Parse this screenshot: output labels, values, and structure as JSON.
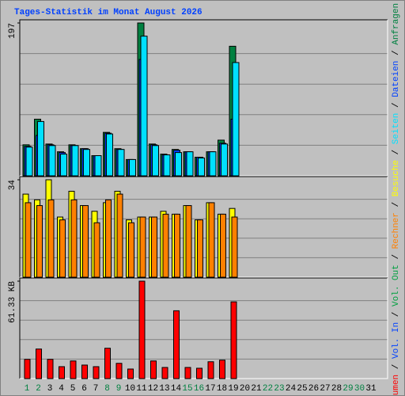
{
  "chart_data": [
    {
      "type": "bar",
      "title": "Tages-Statistik im Monat August 2026",
      "title_color": "#0040ff",
      "ylim": [
        0,
        197
      ],
      "yticks": [
        197
      ],
      "grid": true,
      "legend_separator": "/",
      "series": [
        {
          "name": "Anfragen",
          "color": "#008040",
          "values": [
            40,
            73,
            41,
            31,
            40,
            35,
            26,
            56,
            35,
            21,
            197,
            41,
            28,
            34,
            31,
            24,
            31,
            46,
            167,
            null,
            null,
            null,
            null,
            null,
            null,
            null,
            null,
            null,
            null,
            null,
            null
          ]
        },
        {
          "name": "Dateien",
          "color": "#0040ff",
          "values": [
            38,
            52,
            40,
            30,
            39,
            35,
            26,
            55,
            34,
            21,
            150,
            40,
            27,
            33,
            31,
            24,
            31,
            42,
            73,
            null,
            null,
            null,
            null,
            null,
            null,
            null,
            null,
            null,
            null,
            null,
            null
          ]
        },
        {
          "name": "Seiten",
          "color": "#00e0ff",
          "values": [
            37,
            70,
            39,
            28,
            39,
            34,
            26,
            54,
            34,
            21,
            180,
            39,
            27,
            30,
            31,
            23,
            31,
            41,
            146,
            null,
            null,
            null,
            null,
            null,
            null,
            null,
            null,
            null,
            null,
            null,
            null
          ]
        }
      ]
    },
    {
      "type": "bar",
      "ylim": [
        0,
        34
      ],
      "yticks": [
        34
      ],
      "grid": true,
      "series": [
        {
          "name": "Besuche",
          "color": "#ffff00",
          "values": [
            29,
            27,
            34,
            21,
            30,
            25,
            23,
            26,
            30,
            20,
            21,
            21,
            23,
            22,
            25,
            20,
            26,
            22,
            24,
            null,
            null,
            null,
            null,
            null,
            null,
            null,
            null,
            null,
            null,
            null,
            null
          ]
        },
        {
          "name": "Rechner",
          "color": "#ff8000",
          "values": [
            26,
            25,
            27,
            20,
            27,
            25,
            19,
            27,
            29,
            19,
            21,
            21,
            22,
            22,
            25,
            20,
            26,
            22,
            21,
            null,
            null,
            null,
            null,
            null,
            null,
            null,
            null,
            null,
            null,
            null,
            null
          ]
        }
      ]
    },
    {
      "type": "bar",
      "ylim": [
        0,
        61.33
      ],
      "yticks": [
        {
          "value": 61.33,
          "label": "61.33 KB"
        }
      ],
      "grid": true,
      "categories": [
        "1",
        "2",
        "3",
        "4",
        "5",
        "6",
        "7",
        "8",
        "9",
        "10",
        "11",
        "12",
        "13",
        "14",
        "15",
        "16",
        "17",
        "18",
        "19",
        "20",
        "21",
        "22",
        "23",
        "24",
        "25",
        "26",
        "27",
        "28",
        "29",
        "30",
        "31"
      ],
      "category_colors": [
        "#008040",
        "#008040",
        "#000000",
        "#000000",
        "#000000",
        "#000000",
        "#000000",
        "#008040",
        "#008040",
        "#000000",
        "#000000",
        "#000000",
        "#000000",
        "#000000",
        "#008040",
        "#008040",
        "#000000",
        "#000000",
        "#000000",
        "#000000",
        "#000000",
        "#008040",
        "#008040",
        "#000000",
        "#000000",
        "#000000",
        "#000000",
        "#000000",
        "#008040",
        "#008040",
        "#000000"
      ],
      "series": [
        {
          "name": "Volumen",
          "color": "#ff0000",
          "values": [
            12.1,
            18.6,
            12.1,
            7.5,
            11.1,
            8.5,
            7.5,
            19.1,
            9.6,
            6.0,
            61.33,
            11.1,
            7.0,
            42.7,
            7.0,
            6.5,
            10.6,
            11.6,
            48.3,
            null,
            null,
            null,
            null,
            null,
            null,
            null,
            null,
            null,
            null,
            null,
            null
          ]
        },
        {
          "name": "Vol. In",
          "color": "#0040ff",
          "values": [
            null,
            null,
            null,
            null,
            null,
            null,
            null,
            null,
            null,
            null,
            null,
            null,
            null,
            null,
            null,
            null,
            null,
            null,
            null,
            null,
            null,
            null,
            null,
            null,
            null,
            null,
            null,
            null,
            null,
            null,
            null
          ]
        },
        {
          "name": "Vol. Out",
          "color": "#00a040",
          "values": [
            null,
            null,
            null,
            null,
            null,
            null,
            null,
            null,
            null,
            null,
            null,
            null,
            null,
            null,
            null,
            null,
            null,
            null,
            null,
            null,
            null,
            null,
            null,
            null,
            null,
            null,
            null,
            null,
            null,
            null,
            null
          ]
        }
      ]
    }
  ]
}
